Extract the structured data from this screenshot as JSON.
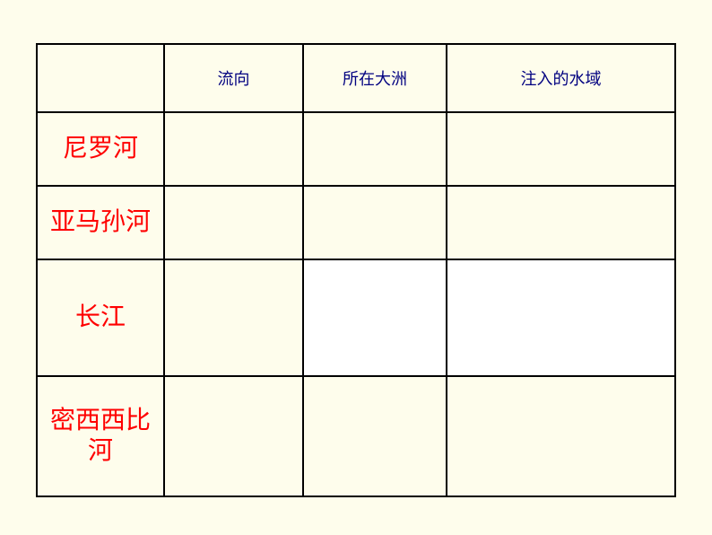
{
  "table": {
    "background_color": "#fefdec",
    "border_color": "#000000",
    "header_color": "#000080",
    "river_label_color": "#ff0000",
    "white_cell_color": "#ffffff",
    "header_fontsize": 18,
    "river_fontsize": 28,
    "columns": {
      "corner": "",
      "direction": "流向",
      "continent": "所在大洲",
      "waterbody": "注入的水域"
    },
    "rows": [
      {
        "label": "尼罗河",
        "direction": "",
        "continent": "",
        "waterbody": "",
        "cells_white": [
          false,
          false,
          false
        ]
      },
      {
        "label": "亚马孙河",
        "direction": "",
        "continent": "",
        "waterbody": "",
        "cells_white": [
          false,
          false,
          false
        ]
      },
      {
        "label": "长江",
        "direction": "",
        "continent": "",
        "waterbody": "",
        "cells_white": [
          false,
          true,
          true
        ]
      },
      {
        "label": "密西西比河",
        "direction": "",
        "continent": "",
        "waterbody": "",
        "cells_white": [
          false,
          false,
          false
        ]
      }
    ]
  }
}
